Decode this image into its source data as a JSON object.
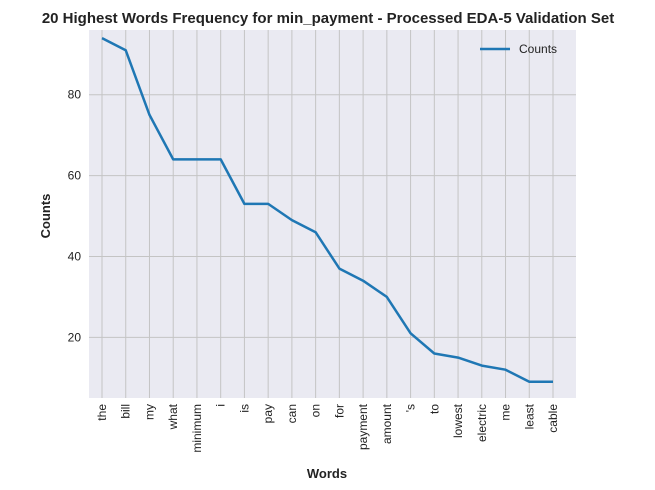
{
  "chart_data": {
    "type": "line",
    "title": "20 Highest Words Frequency for min_payment - Processed EDA-5 Validation Set",
    "xlabel": "Words",
    "ylabel": "Counts",
    "categories": [
      "the",
      "bill",
      "my",
      "what",
      "minimum",
      "i",
      "is",
      "pay",
      "can",
      "on",
      "for",
      "payment",
      "amount",
      "'s",
      "to",
      "lowest",
      "electric",
      "me",
      "least",
      "cable"
    ],
    "series": [
      {
        "name": "Counts",
        "values": [
          94,
          91,
          75,
          64,
          64,
          64,
          53,
          53,
          49,
          46,
          37,
          34,
          30,
          21,
          16,
          15,
          13,
          12,
          9,
          9
        ]
      }
    ],
    "ylim": [
      5,
      96
    ],
    "yticks": [
      20,
      40,
      60,
      80
    ],
    "grid": true,
    "legend_position": "top-right",
    "colors": {
      "line": "#1f77b4",
      "plot_bg": "#eaeaf2",
      "grid": "#c4c4c4"
    }
  }
}
